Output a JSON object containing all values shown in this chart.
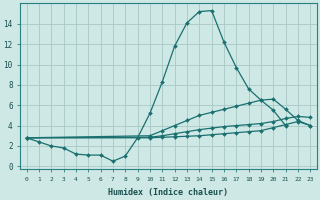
{
  "xlabel": "Humidex (Indice chaleur)",
  "bg_color": "#cde8e5",
  "grid_color": "#a8c8c5",
  "line_color": "#1a7070",
  "xlim": [
    -0.5,
    23.5
  ],
  "ylim": [
    -0.3,
    16.0
  ],
  "xticks": [
    0,
    1,
    2,
    3,
    4,
    5,
    6,
    7,
    8,
    9,
    10,
    11,
    12,
    13,
    14,
    15,
    16,
    17,
    18,
    19,
    20,
    21,
    22,
    23
  ],
  "yticks": [
    0,
    2,
    4,
    6,
    8,
    10,
    12,
    14
  ],
  "series": [
    {
      "x": [
        0,
        1,
        2,
        3,
        4,
        5,
        6,
        7,
        8,
        9,
        10,
        11,
        12,
        13,
        14,
        15,
        16,
        17,
        18,
        19,
        20,
        21
      ],
      "y": [
        2.8,
        2.4,
        2.0,
        1.8,
        1.2,
        1.1,
        1.1,
        0.5,
        1.0,
        2.8,
        5.2,
        8.3,
        11.8,
        14.1,
        15.2,
        15.3,
        12.2,
        9.7,
        7.6,
        6.5,
        5.5,
        4.0
      ]
    },
    {
      "x": [
        0,
        10,
        11,
        12,
        13,
        14,
        15,
        16,
        17,
        18,
        19,
        20,
        21,
        22,
        23
      ],
      "y": [
        2.8,
        3.0,
        3.5,
        4.0,
        4.5,
        5.0,
        5.3,
        5.6,
        5.9,
        6.2,
        6.5,
        6.6,
        5.6,
        4.5,
        4.0
      ]
    },
    {
      "x": [
        0,
        10,
        11,
        12,
        13,
        14,
        15,
        16,
        17,
        18,
        19,
        20,
        21,
        22,
        23
      ],
      "y": [
        2.8,
        2.85,
        3.0,
        3.2,
        3.4,
        3.6,
        3.75,
        3.9,
        4.0,
        4.1,
        4.2,
        4.4,
        4.7,
        4.9,
        4.8
      ]
    },
    {
      "x": [
        0,
        10,
        11,
        12,
        13,
        14,
        15,
        16,
        17,
        18,
        19,
        20,
        21,
        22,
        23
      ],
      "y": [
        2.8,
        2.8,
        2.85,
        2.9,
        2.95,
        3.0,
        3.1,
        3.2,
        3.3,
        3.4,
        3.5,
        3.8,
        4.1,
        4.4,
        4.0
      ]
    }
  ]
}
